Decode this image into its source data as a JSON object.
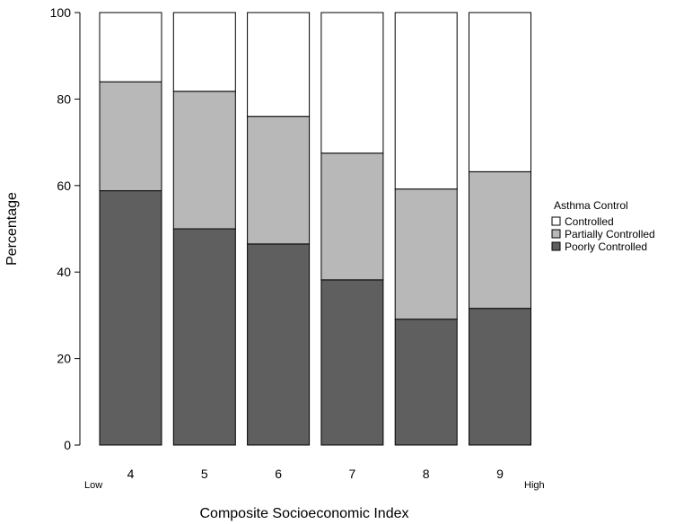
{
  "chart_data": {
    "type": "bar",
    "stacked": true,
    "categories": [
      "4",
      "5",
      "6",
      "7",
      "8",
      "9"
    ],
    "series": [
      {
        "name": "Poorly Controlled",
        "color": "#5f5f5f",
        "values": [
          58.8,
          50.0,
          46.5,
          38.2,
          29.1,
          31.6
        ]
      },
      {
        "name": "Partially Controlled",
        "color": "#b8b8b8",
        "values": [
          25.2,
          31.8,
          29.5,
          29.3,
          30.1,
          31.6
        ]
      },
      {
        "name": "Controlled",
        "color": "#ffffff",
        "values": [
          16.0,
          18.2,
          24.0,
          32.5,
          40.8,
          36.8
        ]
      }
    ],
    "xlabel": "Composite Socioeconomic Index",
    "ylabel": "Percentage",
    "ylim": [
      0,
      100
    ],
    "yticks": [
      0,
      20,
      40,
      60,
      80,
      100
    ],
    "x_low_label": "Low",
    "x_high_label": "High",
    "grid": false,
    "legend": {
      "title": "Asthma Control",
      "placement": "right",
      "entries": [
        "Controlled",
        "Partially Controlled",
        "Poorly Controlled"
      ]
    }
  }
}
